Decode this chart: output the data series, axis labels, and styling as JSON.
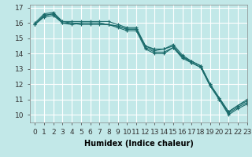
{
  "xlabel": "Humidex (Indice chaleur)",
  "background_color": "#c2e8e8",
  "grid_color": "#ffffff",
  "line_color": "#1a6b6b",
  "xlim": [
    -0.5,
    23
  ],
  "ylim": [
    9.5,
    17.2
  ],
  "yticks": [
    10,
    11,
    12,
    13,
    14,
    15,
    16,
    17
  ],
  "xtick_labels": [
    "0",
    "1",
    "2",
    "3",
    "4",
    "5",
    "6",
    "7",
    "8",
    "9",
    "10",
    "11",
    "12",
    "13",
    "14",
    "15",
    "16",
    "17",
    "18",
    "19",
    "20",
    "21",
    "22",
    "23"
  ],
  "series": [
    [
      15.9,
      16.5,
      16.6,
      16.0,
      16.0,
      15.9,
      15.9,
      15.9,
      15.9,
      15.7,
      15.5,
      15.5,
      14.3,
      14.0,
      14.0,
      14.4,
      13.7,
      13.4,
      13.1,
      11.9,
      11.0,
      10.0,
      10.4,
      10.7
    ],
    [
      15.9,
      16.5,
      16.6,
      16.1,
      16.0,
      16.0,
      16.0,
      16.0,
      15.9,
      15.8,
      15.6,
      15.6,
      14.4,
      14.1,
      14.1,
      14.4,
      13.8,
      13.4,
      13.1,
      11.9,
      11.0,
      10.1,
      10.5,
      10.8
    ],
    [
      15.9,
      16.4,
      16.5,
      16.0,
      15.9,
      16.0,
      16.0,
      16.0,
      15.9,
      15.8,
      15.6,
      15.6,
      14.5,
      14.3,
      14.3,
      14.5,
      13.8,
      13.5,
      13.2,
      12.0,
      11.1,
      10.2,
      10.6,
      10.9
    ],
    [
      16.0,
      16.6,
      16.7,
      16.1,
      16.1,
      16.1,
      16.1,
      16.1,
      16.1,
      15.9,
      15.7,
      15.7,
      14.5,
      14.2,
      14.3,
      14.6,
      13.9,
      13.5,
      13.2,
      12.0,
      11.1,
      10.2,
      10.6,
      11.0
    ]
  ],
  "marker": "+",
  "markersize": 3,
  "linewidth": 0.8,
  "xlabel_fontsize": 7,
  "tick_fontsize": 6.5
}
